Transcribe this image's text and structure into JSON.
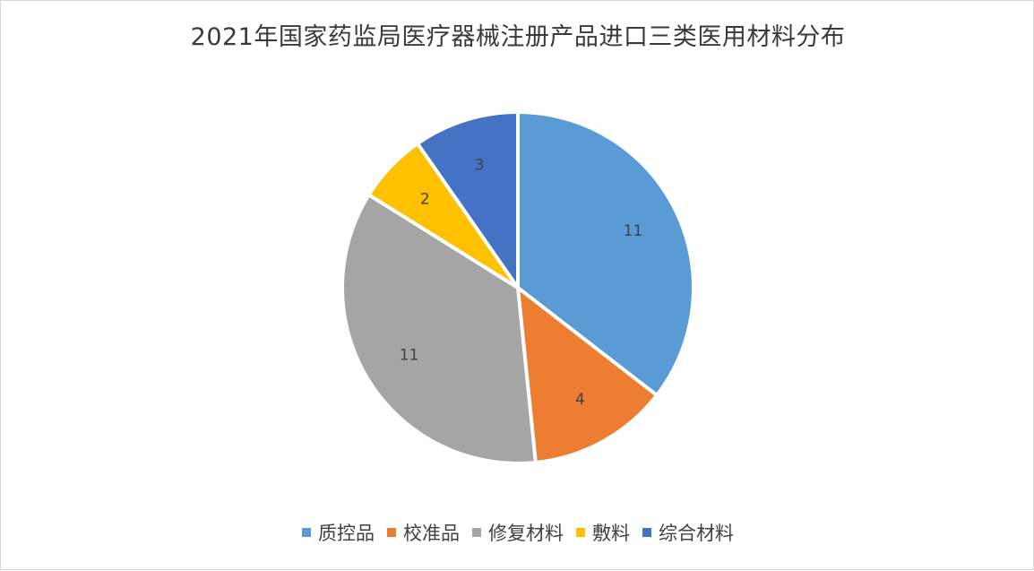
{
  "chart_data": {
    "type": "pie",
    "title": "2021年国家药监局医疗器械注册产品进口三类医用材料分布",
    "categories": [
      "质控品",
      "校准品",
      "修复材料",
      "敷料",
      "综合材料"
    ],
    "values": [
      11,
      4,
      11,
      2,
      3
    ],
    "colors": [
      "#5b9bd5",
      "#ed7d31",
      "#a5a5a5",
      "#ffc000",
      "#4472c4"
    ],
    "legend_position": "bottom",
    "start_angle": "top, clockwise",
    "data_labels": true
  }
}
